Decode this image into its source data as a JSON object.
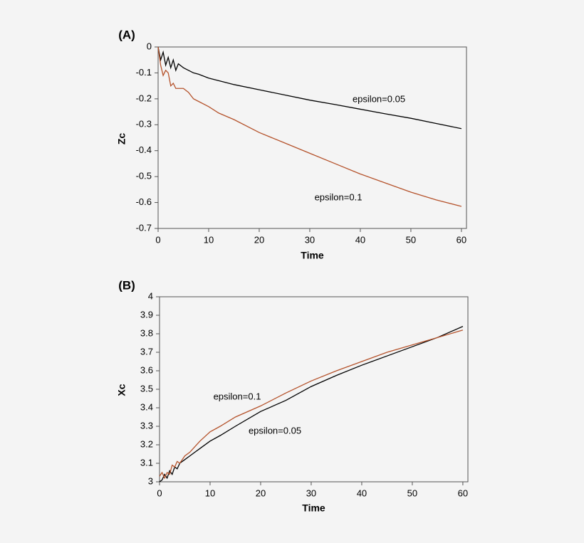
{
  "chart_data": [
    {
      "type": "line",
      "panel_label": "(A)",
      "xlabel": "Time",
      "ylabel": "Zc",
      "x": [
        0,
        0.5,
        1,
        1.5,
        2,
        2.5,
        3,
        3.5,
        4,
        5,
        6,
        7,
        8,
        10,
        12,
        15,
        20,
        25,
        30,
        35,
        40,
        45,
        50,
        55,
        60
      ],
      "series": [
        {
          "name": "epsilon=0.05",
          "color": "#000000",
          "values": [
            0,
            -0.05,
            -0.02,
            -0.07,
            -0.04,
            -0.08,
            -0.05,
            -0.09,
            -0.065,
            -0.08,
            -0.09,
            -0.1,
            -0.105,
            -0.12,
            -0.13,
            -0.145,
            -0.165,
            -0.185,
            -0.205,
            -0.222,
            -0.24,
            -0.258,
            -0.275,
            -0.295,
            -0.315
          ]
        },
        {
          "name": "epsilon=0.1",
          "color": "#b5532c",
          "values": [
            0,
            -0.07,
            -0.11,
            -0.09,
            -0.1,
            -0.15,
            -0.14,
            -0.16,
            -0.16,
            -0.16,
            -0.175,
            -0.2,
            -0.21,
            -0.23,
            -0.255,
            -0.28,
            -0.33,
            -0.37,
            -0.41,
            -0.45,
            -0.49,
            -0.525,
            -0.56,
            -0.59,
            -0.615
          ]
        }
      ],
      "xlim": [
        0,
        61
      ],
      "ylim": [
        -0.7,
        0
      ],
      "xticks": [
        0,
        10,
        20,
        30,
        40,
        50,
        60
      ],
      "yticks": [
        0,
        -0.1,
        -0.2,
        -0.3,
        -0.4,
        -0.5,
        -0.6,
        -0.7
      ],
      "annotations": [
        "epsilon=0.05",
        "epsilon=0.1"
      ]
    },
    {
      "type": "line",
      "panel_label": "(B)",
      "xlabel": "Time",
      "ylabel": "Xc",
      "x": [
        0,
        0.5,
        1,
        1.5,
        2,
        2.5,
        3,
        3.5,
        4,
        5,
        6,
        7,
        8,
        10,
        12,
        15,
        20,
        25,
        30,
        35,
        40,
        45,
        50,
        55,
        60
      ],
      "series": [
        {
          "name": "epsilon=0.05",
          "color": "#000000",
          "values": [
            3,
            3.01,
            3.04,
            3.02,
            3.06,
            3.04,
            3.08,
            3.07,
            3.1,
            3.12,
            3.14,
            3.16,
            3.18,
            3.22,
            3.25,
            3.3,
            3.38,
            3.44,
            3.515,
            3.575,
            3.63,
            3.68,
            3.73,
            3.78,
            3.84
          ]
        },
        {
          "name": "epsilon=0.1",
          "color": "#b5532c",
          "values": [
            3.03,
            3.05,
            3.02,
            3.05,
            3.04,
            3.09,
            3.08,
            3.11,
            3.1,
            3.14,
            3.16,
            3.19,
            3.22,
            3.27,
            3.3,
            3.35,
            3.41,
            3.48,
            3.545,
            3.6,
            3.65,
            3.7,
            3.74,
            3.78,
            3.82
          ]
        }
      ],
      "xlim": [
        0,
        61
      ],
      "ylim": [
        3,
        4
      ],
      "xticks": [
        0,
        10,
        20,
        30,
        40,
        50,
        60
      ],
      "yticks": [
        3,
        3.1,
        3.2,
        3.3,
        3.4,
        3.5,
        3.6,
        3.7,
        3.8,
        3.9,
        4
      ],
      "annotations": [
        "epsilon=0.1",
        "epsilon=0.05"
      ]
    }
  ]
}
